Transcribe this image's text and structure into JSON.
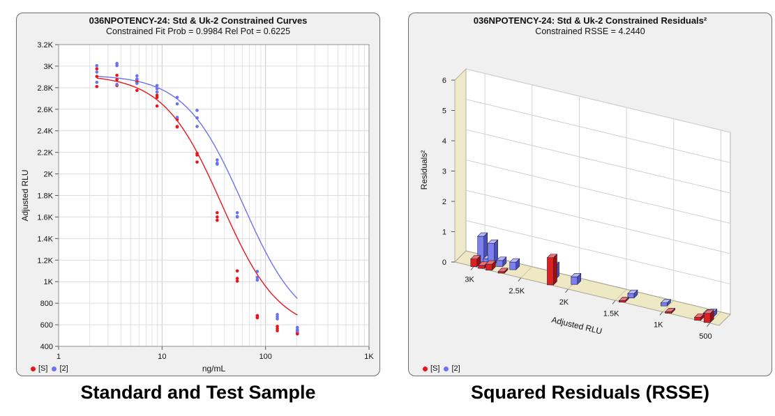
{
  "captions": {
    "left": "Standard and Test Sample",
    "right": "Squared Residuals (RSSE)"
  },
  "colors": {
    "std": "#e8151b",
    "test": "#6b72f0",
    "test_bar": "#7b7ff0",
    "std_bar": "#e02020",
    "floor": "#eee8c4"
  },
  "chart_data": [
    {
      "type": "scatter",
      "title": "036NPOTENCY-24: Std & Uk-2 Constrained Curves",
      "subtitle": "Constrained Fit Prob = 0.9984  Rel Pot = 0.6225",
      "xlabel": "ng/mL",
      "ylabel": "Adjusted RLU",
      "xscale": "log",
      "xlim": [
        1,
        1000
      ],
      "ylim": [
        400,
        3200
      ],
      "xticks": [
        {
          "v": 1,
          "label": "1"
        },
        {
          "v": 10,
          "label": "10"
        },
        {
          "v": 100,
          "label": "100"
        },
        {
          "v": 1000,
          "label": "1K"
        }
      ],
      "yticks": [
        {
          "v": 400,
          "label": "400"
        },
        {
          "v": 600,
          "label": "600"
        },
        {
          "v": 800,
          "label": "800"
        },
        {
          "v": 1000,
          "label": "1K"
        },
        {
          "v": 1200,
          "label": "1.2K"
        },
        {
          "v": 1400,
          "label": "1.4K"
        },
        {
          "v": 1600,
          "label": "1.6K"
        },
        {
          "v": 1800,
          "label": "1.8K"
        },
        {
          "v": 2000,
          "label": "2K"
        },
        {
          "v": 2200,
          "label": "2.2K"
        },
        {
          "v": 2400,
          "label": "2.4K"
        },
        {
          "v": 2600,
          "label": "2.6K"
        },
        {
          "v": 2800,
          "label": "2.8K"
        },
        {
          "v": 3000,
          "label": "3K"
        },
        {
          "v": 3200,
          "label": "3.2K"
        }
      ],
      "grid": true,
      "legend_position": "bottom-left",
      "series": [
        {
          "name": "[S]",
          "x": [
            2.34,
            3.66,
            5.72,
            8.94,
            14.0,
            21.8,
            34.1,
            53.3,
            83.3,
            130,
            203
          ],
          "y_reps": [
            [
              2975,
              2905,
              2810
            ],
            [
              2915,
              2875,
              2820
            ],
            [
              2875,
              2855,
              2775
            ],
            [
              2730,
              2710,
              2630
            ],
            [
              2505,
              2440,
              2435
            ],
            [
              2190,
              2175,
              2110
            ],
            [
              1640,
              1600,
              1570
            ],
            [
              1100,
              1030,
              1005
            ],
            [
              685,
              670,
              665
            ],
            [
              585,
              565,
              545
            ],
            [
              545,
              525,
              515
            ]
          ],
          "curve": {
            "min": 528,
            "max": 2921,
            "ec50": 37.5,
            "slope": 1.55
          }
        },
        {
          "name": "[2]",
          "x": [
            2.34,
            3.66,
            5.72,
            8.94,
            14.0,
            21.8,
            34.1,
            53.3,
            83.3,
            130,
            203
          ],
          "y_reps": [
            [
              3005,
              2945,
              2850
            ],
            [
              3025,
              3005,
              2830
            ],
            [
              2910,
              2880,
              2840
            ],
            [
              2820,
              2790,
              2760
            ],
            [
              2710,
              2650,
              2525
            ],
            [
              2590,
              2520,
              2440
            ],
            [
              2130,
              2100,
              2090
            ],
            [
              1640,
              1600,
              1605
            ],
            [
              1095,
              1040,
              1015
            ],
            [
              695,
              675,
              655
            ],
            [
              575,
              555,
              540
            ]
          ],
          "curve": {
            "min": 528,
            "max": 2921,
            "ec50": 60.2,
            "slope": 1.55
          }
        }
      ]
    },
    {
      "type": "bar",
      "title": "036NPOTENCY-24: Std & Uk-2  Constrained Residuals²",
      "subtitle": "Constrained RSSE = 4.2440",
      "xlabel": "Adjusted RLU",
      "ylabel": "Residuals²",
      "xlim": [
        3200,
        400
      ],
      "ylim": [
        0,
        6
      ],
      "xticks": [
        {
          "v": 3000,
          "label": "3K"
        },
        {
          "v": 2500,
          "label": "2.5K"
        },
        {
          "v": 2000,
          "label": "2K"
        },
        {
          "v": 1500,
          "label": "1.5K"
        },
        {
          "v": 1000,
          "label": "1K"
        },
        {
          "v": 500,
          "label": "500"
        }
      ],
      "yticks": [
        0,
        1,
        2,
        3,
        4,
        5,
        6
      ],
      "grid": true,
      "legend_position": "bottom-left",
      "series": [
        {
          "name": "[2]",
          "x": [
            2990,
            2930,
            2880,
            2790,
            2650,
            2230,
            2000,
            1400,
            1050,
            600,
            560
          ],
          "values": [
            0.85,
            0.15,
            0.7,
            0.2,
            0.25,
            0.45,
            0.25,
            0.15,
            0.1,
            0.1,
            0.15
          ]
        },
        {
          "name": "[S]",
          "x": [
            3010,
            2930,
            2850,
            2720,
            2200,
            1440,
            950,
            640,
            540
          ],
          "values": [
            0.25,
            0.1,
            0.2,
            0.05,
            0.9,
            0.05,
            0.05,
            0.1,
            0.3
          ]
        }
      ]
    }
  ]
}
